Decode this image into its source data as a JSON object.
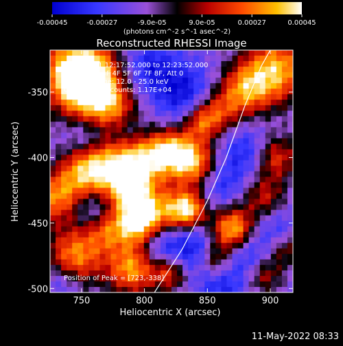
{
  "chart_data": {
    "type": "heatmap",
    "title": "Reconstructed RHESSI Image",
    "xlabel": "Heliocentric X (arcsec)",
    "ylabel": "Heliocentric Y (arcsec)",
    "xlim": [
      725,
      918
    ],
    "ylim": [
      -503,
      -318
    ],
    "x_ticks": [
      750,
      800,
      850,
      900
    ],
    "y_ticks": [
      -350,
      -400,
      -450,
      -500
    ],
    "x_tick_labels": [
      "750",
      "800",
      "850",
      "900"
    ],
    "y_tick_labels": [
      "-350",
      "-400",
      "-450",
      "-500"
    ],
    "colorbar": {
      "range": [
        -0.00045,
        0.00045
      ],
      "ticks": [
        -0.00045,
        -0.00027,
        -9e-05,
        9e-05,
        0.00027,
        0.00045
      ],
      "tick_labels": [
        "-0.00045",
        "-0.00027",
        "-9.0e-05",
        "9.0e-05",
        "0.00027",
        "0.00045"
      ],
      "unit_label": "(photons cm^-2 s^-1 asec^-2)"
    },
    "annotations": {
      "time_range": "2-May-2011 12:17:52.000 to 12:23:52.000",
      "detectors": "Detectors: 3F 4F 5F 6F 7F 8F, Att 0",
      "energy_range": "Energy Range: 12.0 - 25.0 keV",
      "method_counts": "Clean    Total counts: 1.17E+04",
      "peak_position": "Position of Peak = [723,-338]"
    },
    "footer_timestamp": "11-May-2022 08:33",
    "limb_curve": [
      [
        808,
        -503
      ],
      [
        830,
        -470
      ],
      [
        850,
        -433
      ],
      [
        865,
        -400
      ],
      [
        880,
        -360
      ],
      [
        893,
        -330
      ],
      [
        900,
        -318
      ]
    ],
    "hotspots": [
      [
        745,
        -335,
        1.0,
        20
      ],
      [
        760,
        -345,
        0.9,
        18
      ],
      [
        778,
        -362,
        0.75,
        15
      ],
      [
        905,
        -333,
        0.9,
        18
      ],
      [
        880,
        -348,
        0.7,
        14
      ],
      [
        860,
        -365,
        0.5,
        12
      ],
      [
        775,
        -408,
        0.85,
        16
      ],
      [
        800,
        -402,
        0.8,
        14
      ],
      [
        822,
        -395,
        0.8,
        12
      ],
      [
        840,
        -405,
        0.85,
        13
      ],
      [
        752,
        -410,
        0.7,
        14
      ],
      [
        730,
        -430,
        0.75,
        14
      ],
      [
        790,
        -428,
        0.7,
        12
      ],
      [
        815,
        -440,
        0.6,
        13
      ],
      [
        835,
        -440,
        0.95,
        10
      ],
      [
        795,
        -450,
        0.95,
        12
      ],
      [
        770,
        -455,
        0.6,
        12
      ],
      [
        745,
        -475,
        0.8,
        16
      ],
      [
        790,
        -485,
        0.85,
        14
      ],
      [
        820,
        -488,
        0.6,
        10
      ],
      [
        870,
        -455,
        1.0,
        12
      ],
      [
        856,
        -478,
        0.55,
        10
      ],
      [
        905,
        -400,
        0.6,
        12
      ],
      [
        895,
        -430,
        0.5,
        12
      ],
      [
        912,
        -470,
        0.45,
        10
      ],
      [
        895,
        -490,
        0.5,
        10
      ],
      [
        845,
        -373,
        0.6,
        10
      ]
    ],
    "coldspots": [
      [
        780,
        -350,
        0.7,
        16
      ],
      [
        805,
        -330,
        0.6,
        14
      ],
      [
        830,
        -350,
        0.8,
        16
      ],
      [
        755,
        -385,
        0.5,
        12
      ],
      [
        785,
        -380,
        0.5,
        12
      ],
      [
        760,
        -440,
        0.55,
        12
      ],
      [
        812,
        -468,
        0.7,
        12
      ],
      [
        840,
        -470,
        0.8,
        14
      ],
      [
        860,
        -420,
        0.6,
        14
      ],
      [
        880,
        -395,
        0.6,
        14
      ],
      [
        880,
        -475,
        0.7,
        14
      ],
      [
        905,
        -455,
        0.5,
        12
      ],
      [
        735,
        -495,
        0.5,
        10
      ],
      [
        860,
        -500,
        0.6,
        12
      ]
    ]
  }
}
